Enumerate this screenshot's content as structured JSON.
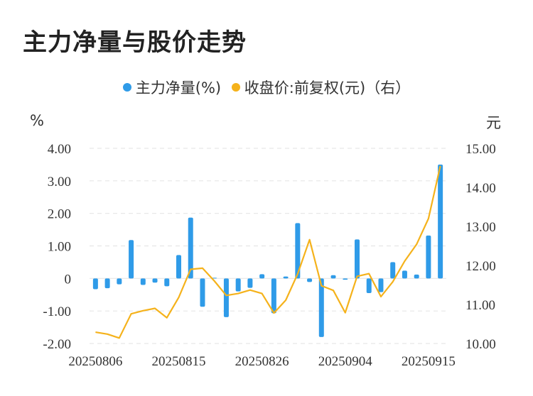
{
  "title": "主力净量与股价走势",
  "legend": [
    {
      "label": "主力净量(%)",
      "color": "#2f9be8"
    },
    {
      "label": "收盘价:前复权(元)（右）",
      "color": "#f5b21b"
    }
  ],
  "chart_data": {
    "type": "bar+line",
    "left_axis_unit": "%",
    "right_axis_unit": "元",
    "left_ticks": [
      "4.00",
      "3.00",
      "2.00",
      "1.00",
      "0",
      "-1.00",
      "-2.00"
    ],
    "right_ticks": [
      "15.00",
      "14.00",
      "13.00",
      "12.00",
      "11.00",
      "10.00"
    ],
    "ylim_left": [
      -2,
      4
    ],
    "ylim_right": [
      10,
      15
    ],
    "x_tick_labels": [
      "20250806",
      "20250815",
      "20250826",
      "20250904",
      "20250915"
    ],
    "x_tick_index": [
      0,
      7,
      14,
      21,
      28
    ],
    "series": [
      {
        "name": "主力净量(%)",
        "type": "bar",
        "color": "#2f9be8",
        "values": [
          -0.33,
          -0.3,
          -0.18,
          1.18,
          -0.2,
          -0.13,
          -0.24,
          0.72,
          1.87,
          -0.87,
          0.02,
          -1.19,
          -0.4,
          -0.29,
          0.13,
          -1.07,
          0.06,
          1.7,
          -0.11,
          -1.8,
          0.1,
          -0.04,
          1.2,
          -0.45,
          -0.42,
          0.5,
          0.24,
          0.12,
          1.32,
          3.5
        ]
      },
      {
        "name": "收盘价:前复权(元)（右）",
        "type": "line",
        "color": "#f5b21b",
        "values": [
          10.29,
          10.24,
          10.14,
          10.76,
          10.84,
          10.9,
          10.66,
          11.18,
          11.9,
          11.93,
          11.6,
          11.23,
          11.28,
          11.37,
          11.28,
          10.78,
          11.11,
          11.78,
          12.66,
          11.48,
          11.36,
          10.79,
          11.72,
          11.79,
          11.2,
          11.58,
          12.11,
          12.54,
          13.2,
          14.55
        ]
      }
    ]
  }
}
